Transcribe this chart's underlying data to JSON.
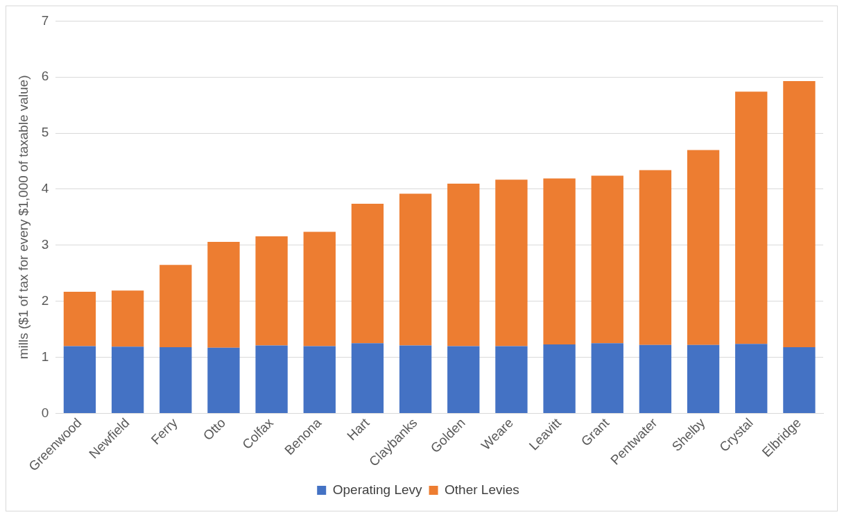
{
  "chart_data": {
    "type": "bar",
    "stacked": true,
    "ylabel": "mills ($1 of tax for every $1,000 of taxable value)",
    "categories": [
      "Greenwood",
      "Newfield",
      "Ferry",
      "Otto",
      "Colfax",
      "Benona",
      "Hart",
      "Claybanks",
      "Golden",
      "Weare",
      "Leavitt",
      "Grant",
      "Pentwater",
      "Shelby",
      "Crystal",
      "Elbridge"
    ],
    "series": [
      {
        "name": "Operating Levy",
        "color": "#4472c4",
        "values": [
          1.2,
          1.19,
          1.18,
          1.17,
          1.21,
          1.2,
          1.25,
          1.21,
          1.2,
          1.2,
          1.23,
          1.25,
          1.22,
          1.22,
          1.24,
          1.18
        ]
      },
      {
        "name": "Other Levies",
        "color": "#ed7d31",
        "values": [
          0.97,
          1.0,
          1.47,
          1.89,
          1.95,
          2.04,
          2.49,
          2.71,
          2.9,
          2.97,
          2.96,
          2.99,
          3.12,
          3.48,
          4.5,
          4.75
        ]
      }
    ],
    "ylim": [
      0,
      7
    ],
    "yticks": [
      0,
      1,
      2,
      3,
      4,
      5,
      6,
      7
    ],
    "grid": "y",
    "legend": "bottom"
  }
}
